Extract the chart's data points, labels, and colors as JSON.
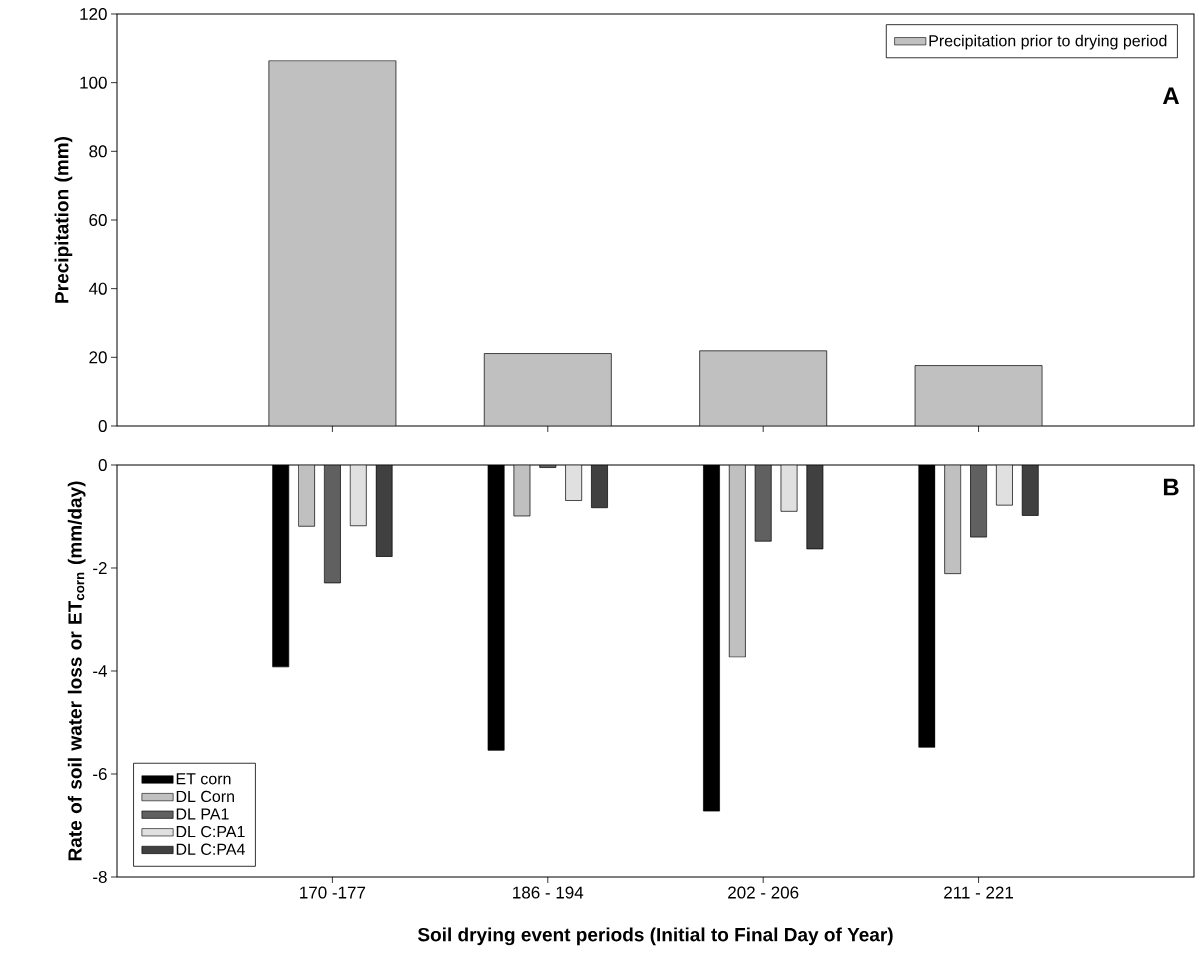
{
  "chart_data": [
    {
      "type": "bar",
      "categories": [
        null,
        null,
        null,
        null
      ],
      "series": [
        {
          "name": "Precipitation prior to drying period",
          "color": "#c0c0c0",
          "values": [
            106.4,
            21.1,
            21.9,
            17.6
          ]
        }
      ],
      "ylabel": "Precipitation (mm)",
      "ylim": [
        0,
        120
      ],
      "yticks": [
        0,
        20,
        40,
        60,
        80,
        100,
        120
      ],
      "legend": "top right",
      "tick_labels": "y",
      "annotations": [
        "A"
      ]
    },
    {
      "type": "bar",
      "categories": [
        "170 -177",
        "186 - 194",
        "202 - 206",
        "211 - 221"
      ],
      "series": [
        {
          "name": "ET corn",
          "color": "#000000",
          "values": [
            -3.92,
            -5.54,
            -6.72,
            -5.48
          ]
        },
        {
          "name": "DL Corn",
          "color": "#c0c0c0",
          "values": [
            -1.19,
            -0.99,
            -3.73,
            -2.11
          ]
        },
        {
          "name": "DL PA1",
          "color": "#606060",
          "values": [
            -2.29,
            -0.05,
            -1.48,
            -1.4
          ]
        },
        {
          "name": "DL C:PA1",
          "color": "#e0e0e0",
          "values": [
            -1.18,
            -0.69,
            -0.9,
            -0.78
          ]
        },
        {
          "name": "DL C:PA4",
          "color": "#404040",
          "values": [
            -1.78,
            -0.83,
            -1.63,
            -0.98
          ]
        }
      ],
      "xlabel": "Soil drying event periods (Initial to Final Day of Year)",
      "ylabel": "Rate of soil water loss or ET$_{corn}$ (mm/day)",
      "ylim": [
        -8,
        0
      ],
      "yticks": [
        -8,
        -6,
        -4,
        -2,
        0
      ],
      "legend": "bottom left",
      "annotations": [
        "B"
      ]
    }
  ]
}
